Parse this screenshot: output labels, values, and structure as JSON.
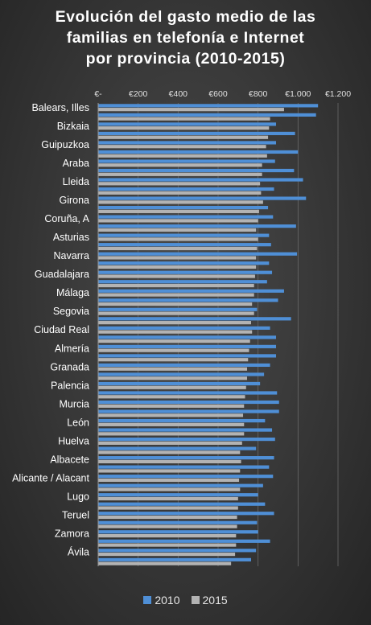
{
  "chart_data": {
    "type": "bar",
    "orientation": "horizontal",
    "title_lines": [
      "Evolución del gasto medio de las",
      "familias en telefonía e Internet",
      "por provincia (2010-2015)"
    ],
    "xlim": [
      0,
      1200
    ],
    "x_ticks": [
      0,
      200,
      400,
      600,
      800,
      1000,
      1200
    ],
    "x_tick_labels": [
      "€-",
      "€200",
      "€400",
      "€600",
      "€800",
      "€1.000",
      "€1.200"
    ],
    "grid": true,
    "legend_position": "bottom",
    "category_labels_shown": [
      "Balears, Illes",
      "Bizkaia",
      "Guipuzkoa",
      "Araba",
      "Lleida",
      "Girona",
      "Coruña, A",
      "Asturias",
      "Navarra",
      "Guadalajara",
      "Málaga",
      "Segovia",
      "Ciudad Real",
      "Almería",
      "Granada",
      "Palencia",
      "Murcia",
      "León",
      "Huelva",
      "Albacete",
      "Alicante / Alacant",
      "Lugo",
      "Teruel",
      "Zamora",
      "Ávila"
    ],
    "series": [
      {
        "name": "2010",
        "color": "#4f8fd6",
        "values": [
          1100,
          1090,
          890,
          985,
          890,
          1000,
          885,
          980,
          1025,
          880,
          1040,
          850,
          875,
          990,
          855,
          865,
          995,
          855,
          870,
          845,
          930,
          900,
          795,
          965,
          860,
          890,
          890,
          890,
          860,
          830,
          810,
          895,
          905,
          905,
          835,
          870,
          885,
          790,
          880,
          855,
          875,
          825,
          800,
          835,
          880,
          795,
          800,
          860,
          790,
          765
        ]
      },
      {
        "name": "2015",
        "color": "#b3b3b3",
        "values": [
          930,
          860,
          855,
          850,
          840,
          845,
          820,
          820,
          810,
          815,
          825,
          805,
          800,
          790,
          800,
          795,
          790,
          790,
          785,
          780,
          780,
          770,
          780,
          765,
          770,
          760,
          755,
          750,
          745,
          745,
          740,
          735,
          730,
          725,
          730,
          730,
          720,
          710,
          715,
          710,
          705,
          710,
          700,
          700,
          695,
          695,
          690,
          690,
          685,
          665
        ]
      }
    ]
  }
}
